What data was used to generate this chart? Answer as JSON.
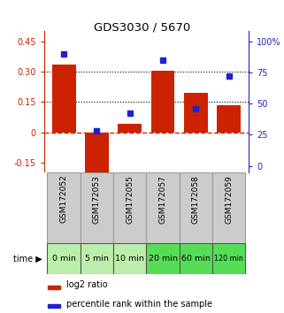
{
  "title": "GDS3030 / 5670",
  "categories": [
    "GSM172052",
    "GSM172053",
    "GSM172055",
    "GSM172057",
    "GSM172058",
    "GSM172059"
  ],
  "time_labels": [
    "0 min",
    "5 min",
    "10 min",
    "20 min",
    "60 min",
    "120 min"
  ],
  "log2_ratios": [
    0.335,
    -0.2,
    0.04,
    0.305,
    0.195,
    0.135
  ],
  "percentile_ranks": [
    90,
    28,
    42,
    85,
    46,
    72
  ],
  "bar_color": "#cc2200",
  "dot_color": "#2222cc",
  "ylim_left": [
    -0.2,
    0.5
  ],
  "ylim_right": [
    -5.4,
    108
  ],
  "yticks_left": [
    -0.15,
    0.0,
    0.15,
    0.3,
    0.45
  ],
  "yticks_right": [
    0,
    25,
    50,
    75,
    100
  ],
  "ytick_labels_left": [
    "-0.15",
    "0",
    "0.15",
    "0.30",
    "0.45"
  ],
  "ytick_labels_right": [
    "0",
    "25",
    "50",
    "75",
    "100%"
  ],
  "hlines": [
    0.15,
    0.3
  ],
  "zero_line_color": "#cc2200",
  "hline_color": "#000000",
  "time_bg_light": "#bbeeaa",
  "time_bg_dark": "#55dd55",
  "time_bg_colors": [
    "#bbeeaa",
    "#bbeeaa",
    "#bbeeaa",
    "#55dd55",
    "#55dd55",
    "#55dd55"
  ],
  "label_bg": "#cccccc",
  "legend_log2_color": "#cc2200",
  "legend_pct_color": "#2222cc"
}
